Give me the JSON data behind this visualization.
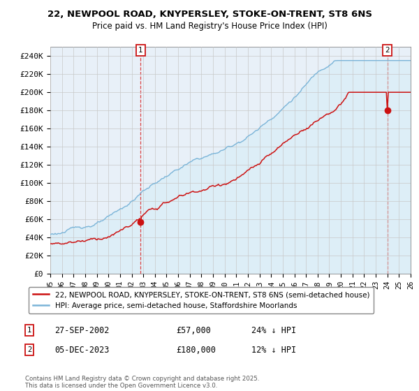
{
  "title_line1": "22, NEWPOOL ROAD, KNYPERSLEY, STOKE-ON-TRENT, ST8 6NS",
  "title_line2": "Price paid vs. HM Land Registry's House Price Index (HPI)",
  "hpi_color": "#7ab4d8",
  "hpi_fill": "#ddeef7",
  "price_color": "#cc1111",
  "vline_color": "#dd4444",
  "marker_edgecolor": "#cc1111",
  "ylim_min": 0,
  "ylim_max": 250000,
  "yticks": [
    0,
    20000,
    40000,
    60000,
    80000,
    100000,
    120000,
    140000,
    160000,
    180000,
    200000,
    220000,
    240000
  ],
  "ytick_labels": [
    "£0",
    "£20K",
    "£40K",
    "£60K",
    "£80K",
    "£100K",
    "£120K",
    "£140K",
    "£160K",
    "£180K",
    "£200K",
    "£220K",
    "£240K"
  ],
  "xlim_min": 1995,
  "xlim_max": 2026,
  "legend_label1": "22, NEWPOOL ROAD, KNYPERSLEY, STOKE-ON-TRENT, ST8 6NS (semi-detached house)",
  "legend_label2": "HPI: Average price, semi-detached house, Staffordshire Moorlands",
  "marker1_year": 2002.75,
  "marker1_price": 57000,
  "marker2_year": 2023.92,
  "marker2_price": 180000,
  "footnote": "Contains HM Land Registry data © Crown copyright and database right 2025.\nThis data is licensed under the Open Government Licence v3.0.",
  "background_color": "#ffffff",
  "grid_color": "#c8c8c8",
  "plot_bg": "#e8f0f8"
}
